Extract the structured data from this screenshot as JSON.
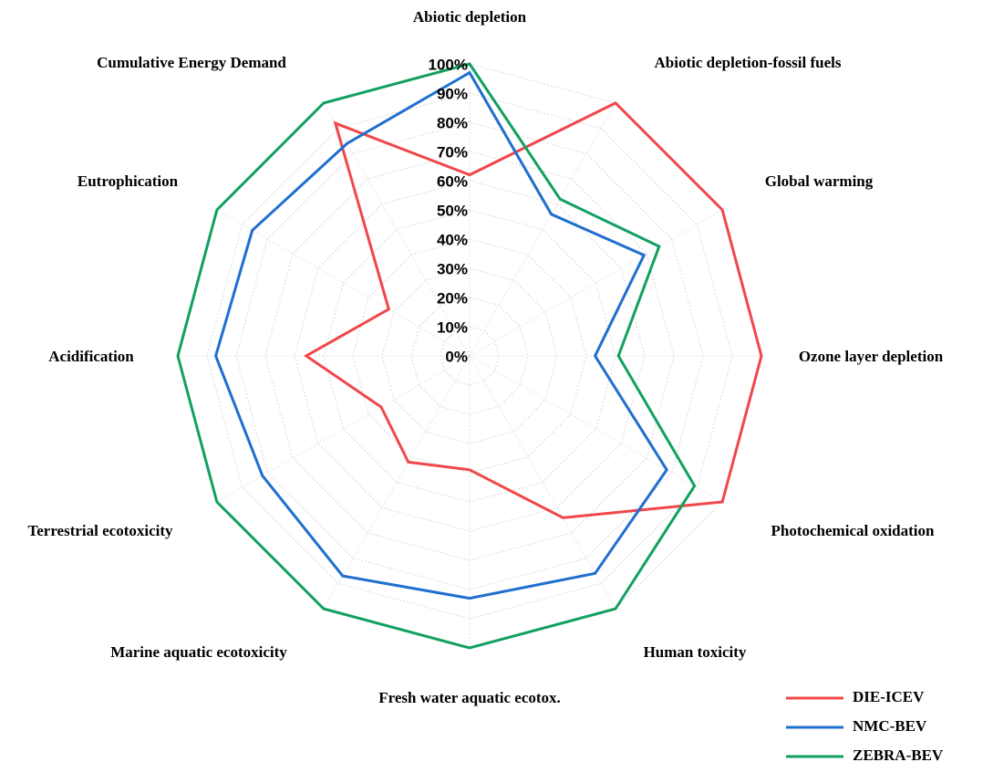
{
  "chart_data": {
    "type": "radar",
    "categories": [
      "Abiotic depletion",
      "Abiotic depletion-fossil fuels",
      "Global warming",
      "Ozone layer depletion",
      "Photochemical oxidation",
      "Human toxicity",
      "Fresh water aquatic ecotox.",
      "Marine aquatic ecotoxicity",
      "Terrestrial ecotoxicity",
      "Acidification",
      "Eutrophication",
      "Cumulative Energy Demand"
    ],
    "series": [
      {
        "name": "DIE-ICEV",
        "color": "#f0474a",
        "values": [
          62,
          100,
          100,
          100,
          100,
          64,
          39,
          42,
          35,
          56,
          32,
          92
        ]
      },
      {
        "name": "NMC-BEV",
        "color": "#1f6fcf",
        "values": [
          97,
          56,
          69,
          43,
          78,
          86,
          83,
          87,
          82,
          87,
          86,
          84
        ]
      },
      {
        "name": "ZEBRA-BEV",
        "color": "#12a060",
        "values": [
          100,
          62,
          75,
          51,
          89,
          100,
          100,
          100,
          100,
          100,
          100,
          100
        ]
      }
    ],
    "ylim": [
      0,
      100
    ],
    "yticks": [
      {
        "value": 0,
        "label": "0%"
      },
      {
        "value": 10,
        "label": "10%"
      },
      {
        "value": 20,
        "label": "20%"
      },
      {
        "value": 30,
        "label": "30%"
      },
      {
        "value": 40,
        "label": "40%"
      },
      {
        "value": 50,
        "label": "50%"
      },
      {
        "value": 60,
        "label": "60%"
      },
      {
        "value": 70,
        "label": "70%"
      },
      {
        "value": 80,
        "label": "80%"
      },
      {
        "value": 90,
        "label": "90%"
      },
      {
        "value": 100,
        "label": "100%"
      }
    ],
    "grid": true,
    "legend": "bottom-right"
  }
}
